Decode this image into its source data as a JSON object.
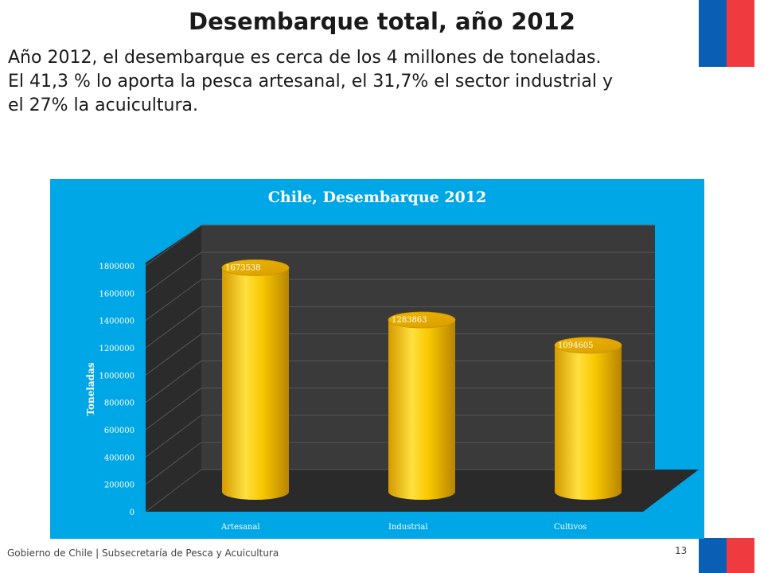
{
  "slide": {
    "title": "Desembarque total, año 2012",
    "body_lines": [
      "Año 2012, el desembarque es cerca de los 4 millones de toneladas.",
      "El 41,3 % lo aporta la pesca artesanal, el 31,7% el sector industrial y",
      "el 27% la acuicultura."
    ],
    "footer": "Gobierno de Chile | Subsecretaría de Pesca y Acuicultura",
    "page_number": "13"
  },
  "colors": {
    "flag_blue": "#0a5fb4",
    "flag_red": "#ef3b3f",
    "chart_panel": "#00a7e6",
    "cylinder": "#f5c400"
  },
  "chart_data": {
    "type": "bar",
    "title": "Chile, Desembarque 2012",
    "categories": [
      "Artesanal",
      "Industrial",
      "Cultivos"
    ],
    "values": [
      1673538,
      1283863,
      1094605
    ],
    "data_labels": [
      "1673538",
      "1283863",
      "1094605"
    ],
    "ylabel": "Toneladas",
    "xlabel": "",
    "ylim": [
      0,
      1800000
    ],
    "yticks": [
      "0",
      "200000",
      "400000",
      "600000",
      "800000",
      "1000000",
      "1200000",
      "1400000",
      "1600000",
      "1800000"
    ],
    "grid": true,
    "style": "3d-cylinder"
  }
}
